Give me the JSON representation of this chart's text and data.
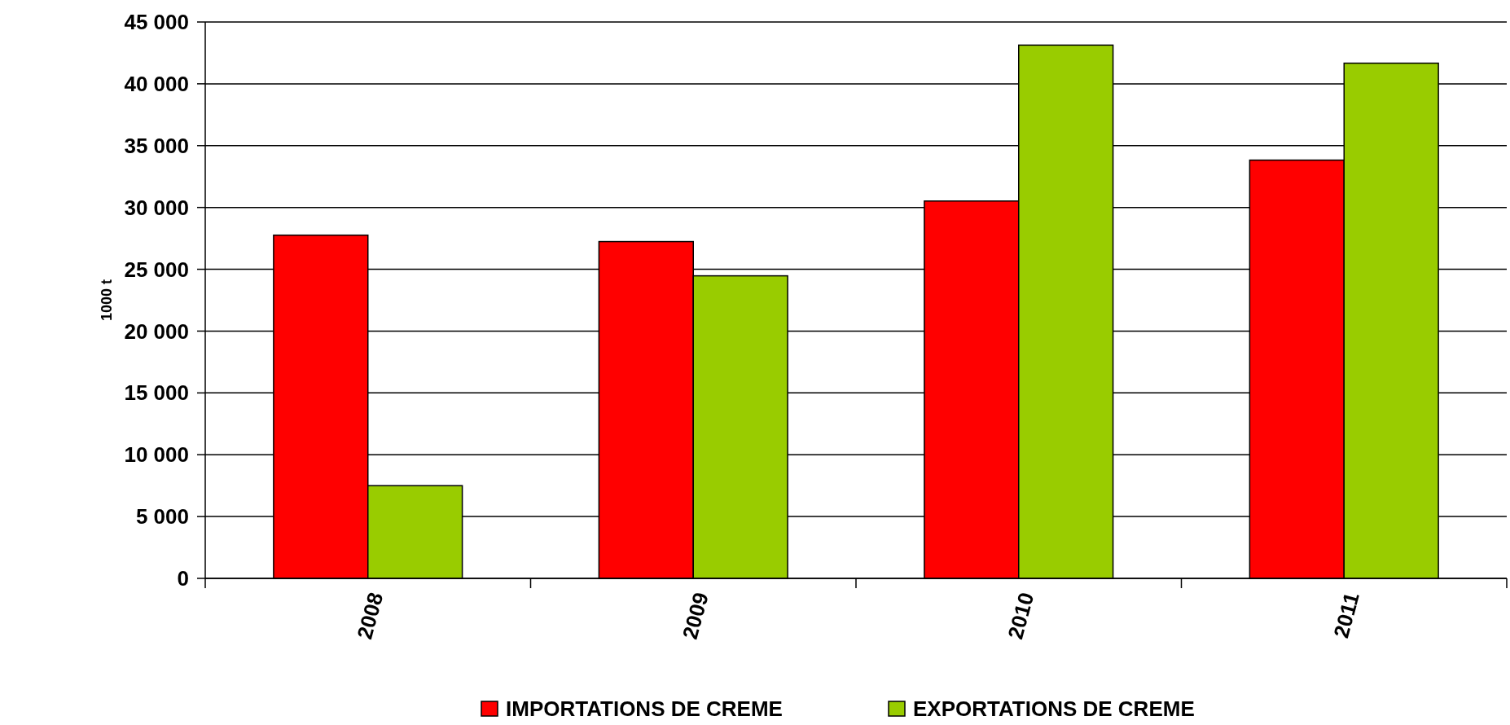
{
  "chart_data": {
    "type": "bar",
    "ylabel": "1000 t",
    "categories": [
      "2008",
      "2009",
      "2010",
      "2011"
    ],
    "series": [
      {
        "name": "IMPORTATIONS DE CREME",
        "color": "#ff0000",
        "values": [
          27760,
          27240,
          30520,
          33830
        ]
      },
      {
        "name": "EXPORTATIONS DE CREME",
        "color": "#99cc00",
        "values": [
          7500,
          24470,
          43130,
          41670
        ]
      }
    ],
    "ylim": [
      0,
      45000
    ],
    "yticks": [
      {
        "value": 0,
        "label": "0"
      },
      {
        "value": 5000,
        "label": "5 000"
      },
      {
        "value": 10000,
        "label": "10 000"
      },
      {
        "value": 15000,
        "label": "15 000"
      },
      {
        "value": 20000,
        "label": "20 000"
      },
      {
        "value": 25000,
        "label": "25 000"
      },
      {
        "value": 30000,
        "label": "30 000"
      },
      {
        "value": 35000,
        "label": "35 000"
      },
      {
        "value": 40000,
        "label": "40 000"
      },
      {
        "value": 45000,
        "label": "45 000"
      }
    ],
    "grid": "y",
    "legend": "bottom"
  }
}
